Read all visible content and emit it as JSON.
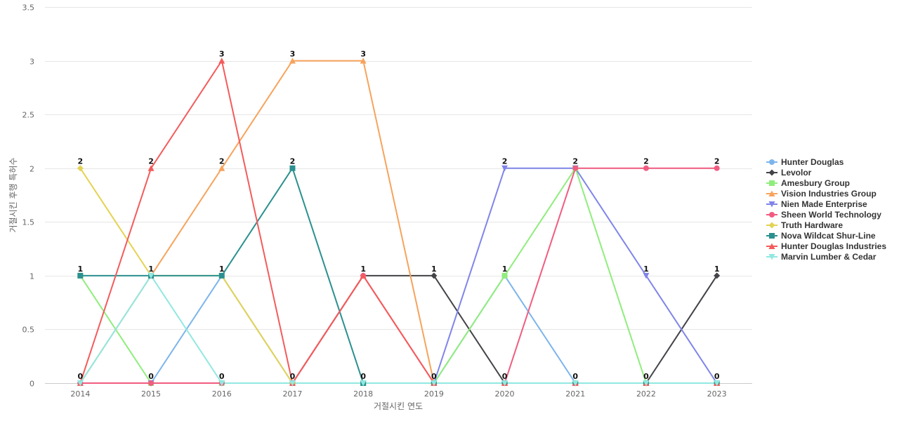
{
  "chart_data": {
    "type": "line",
    "xlabel": "거절시킨 연도",
    "ylabel": "거절시킨 후행 특허수",
    "x": [
      "2014",
      "2015",
      "2016",
      "2017",
      "2018",
      "2019",
      "2020",
      "2021",
      "2022",
      "2023"
    ],
    "ylim": [
      0,
      3.5
    ],
    "yticks": [
      "0",
      "0.5",
      "1",
      "1.5",
      "2",
      "2.5",
      "3",
      "3.5"
    ],
    "grid": true,
    "legend_position": "right",
    "series": [
      {
        "name": "Hunter Douglas",
        "color": "#7cb5ec",
        "marker": "circle",
        "values": [
          0,
          0,
          1,
          0,
          0,
          0,
          1,
          0,
          0,
          0
        ]
      },
      {
        "name": "Levolor",
        "color": "#434348",
        "marker": "diamond",
        "values": [
          0,
          0,
          0,
          0,
          1,
          1,
          0,
          0,
          0,
          1
        ]
      },
      {
        "name": "Amesbury Group",
        "color": "#90ed7d",
        "marker": "square",
        "values": [
          1,
          0,
          0,
          0,
          0,
          0,
          1,
          2,
          0,
          0
        ]
      },
      {
        "name": "Vision Industries Group",
        "color": "#f7a35c",
        "marker": "triangle",
        "values": [
          0,
          1,
          2,
          3,
          3,
          0,
          0,
          0,
          0,
          0
        ]
      },
      {
        "name": "Nien Made Enterprise",
        "color": "#8085e9",
        "marker": "triangle-down",
        "values": [
          0,
          0,
          0,
          0,
          0,
          0,
          2,
          2,
          1,
          0
        ]
      },
      {
        "name": "Sheen World Technology",
        "color": "#f15c80",
        "marker": "circle",
        "values": [
          0,
          0,
          0,
          0,
          1,
          0,
          0,
          2,
          2,
          2
        ]
      },
      {
        "name": "Truth Hardware",
        "color": "#e4d354",
        "marker": "diamond",
        "values": [
          2,
          1,
          1,
          0,
          0,
          0,
          0,
          0,
          0,
          0
        ]
      },
      {
        "name": "Nova Wildcat Shur-Line",
        "color": "#2b908f",
        "marker": "square",
        "values": [
          1,
          1,
          1,
          2,
          0,
          0,
          0,
          0,
          0,
          0
        ]
      },
      {
        "name": "Hunter Douglas Industries",
        "color": "#f45b5b",
        "marker": "triangle",
        "values": [
          0,
          2,
          3,
          0,
          1,
          0,
          0,
          0,
          0,
          0
        ]
      },
      {
        "name": "Marvin Lumber & Cedar",
        "color": "#91e8e1",
        "marker": "triangle-down",
        "values": [
          0,
          1,
          0,
          0,
          0,
          0,
          0,
          0,
          0,
          0
        ]
      }
    ]
  }
}
